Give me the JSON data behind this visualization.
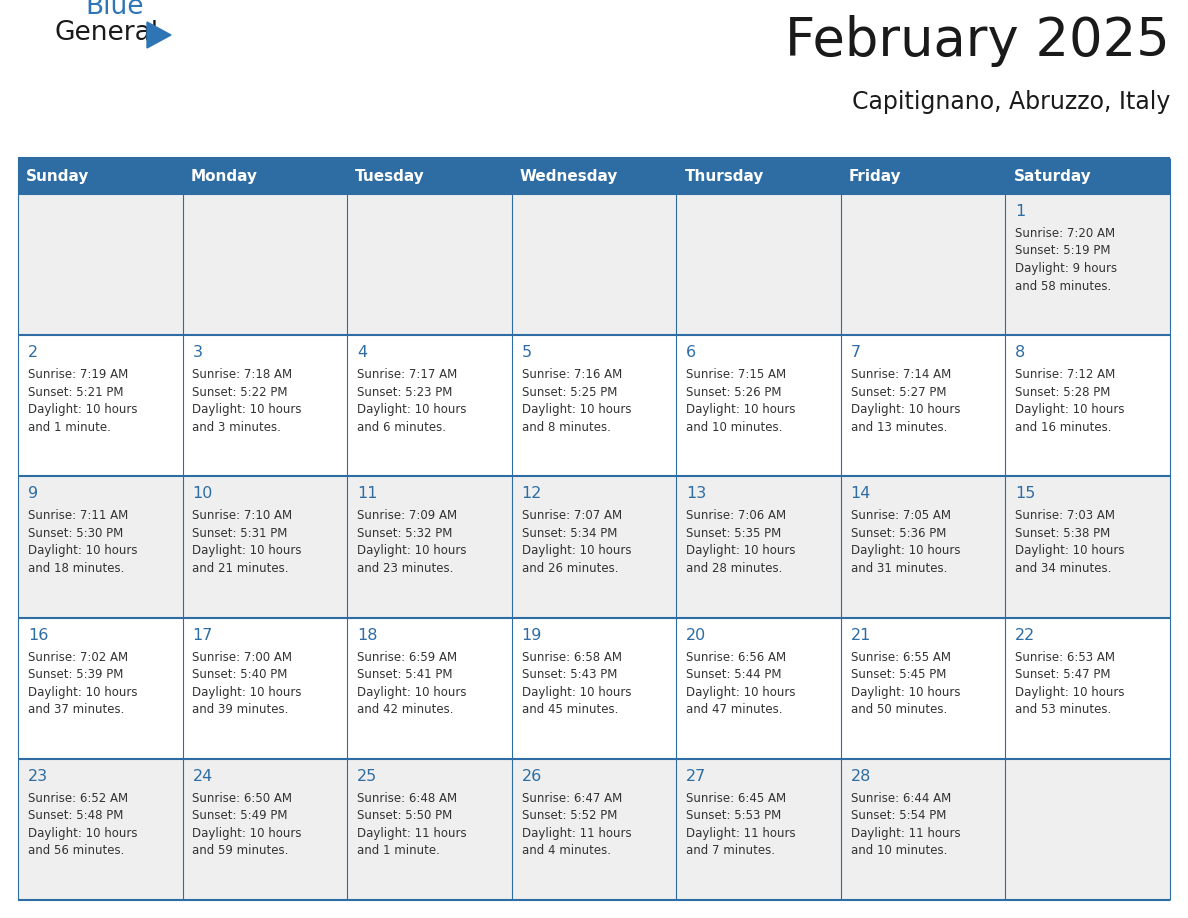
{
  "title": "February 2025",
  "subtitle": "Capitignano, Abruzzo, Italy",
  "header_bg": "#2E6DA4",
  "header_text_color": "#FFFFFF",
  "row_bg_odd": "#EFEFEF",
  "row_bg_even": "#FFFFFF",
  "border_color": "#2E6DA4",
  "day_headers": [
    "Sunday",
    "Monday",
    "Tuesday",
    "Wednesday",
    "Thursday",
    "Friday",
    "Saturday"
  ],
  "title_color": "#1a1a1a",
  "subtitle_color": "#1a1a1a",
  "day_number_color": "#2E6DA4",
  "cell_text_color": "#333333",
  "logo_general_color": "#1a1a1a",
  "logo_blue_color": "#2E75B6",
  "calendar_data": [
    [
      null,
      null,
      null,
      null,
      null,
      null,
      {
        "day": 1,
        "sunrise": "7:20 AM",
        "sunset": "5:19 PM",
        "daylight": "9 hours\nand 58 minutes."
      }
    ],
    [
      {
        "day": 2,
        "sunrise": "7:19 AM",
        "sunset": "5:21 PM",
        "daylight": "10 hours\nand 1 minute."
      },
      {
        "day": 3,
        "sunrise": "7:18 AM",
        "sunset": "5:22 PM",
        "daylight": "10 hours\nand 3 minutes."
      },
      {
        "day": 4,
        "sunrise": "7:17 AM",
        "sunset": "5:23 PM",
        "daylight": "10 hours\nand 6 minutes."
      },
      {
        "day": 5,
        "sunrise": "7:16 AM",
        "sunset": "5:25 PM",
        "daylight": "10 hours\nand 8 minutes."
      },
      {
        "day": 6,
        "sunrise": "7:15 AM",
        "sunset": "5:26 PM",
        "daylight": "10 hours\nand 10 minutes."
      },
      {
        "day": 7,
        "sunrise": "7:14 AM",
        "sunset": "5:27 PM",
        "daylight": "10 hours\nand 13 minutes."
      },
      {
        "day": 8,
        "sunrise": "7:12 AM",
        "sunset": "5:28 PM",
        "daylight": "10 hours\nand 16 minutes."
      }
    ],
    [
      {
        "day": 9,
        "sunrise": "7:11 AM",
        "sunset": "5:30 PM",
        "daylight": "10 hours\nand 18 minutes."
      },
      {
        "day": 10,
        "sunrise": "7:10 AM",
        "sunset": "5:31 PM",
        "daylight": "10 hours\nand 21 minutes."
      },
      {
        "day": 11,
        "sunrise": "7:09 AM",
        "sunset": "5:32 PM",
        "daylight": "10 hours\nand 23 minutes."
      },
      {
        "day": 12,
        "sunrise": "7:07 AM",
        "sunset": "5:34 PM",
        "daylight": "10 hours\nand 26 minutes."
      },
      {
        "day": 13,
        "sunrise": "7:06 AM",
        "sunset": "5:35 PM",
        "daylight": "10 hours\nand 28 minutes."
      },
      {
        "day": 14,
        "sunrise": "7:05 AM",
        "sunset": "5:36 PM",
        "daylight": "10 hours\nand 31 minutes."
      },
      {
        "day": 15,
        "sunrise": "7:03 AM",
        "sunset": "5:38 PM",
        "daylight": "10 hours\nand 34 minutes."
      }
    ],
    [
      {
        "day": 16,
        "sunrise": "7:02 AM",
        "sunset": "5:39 PM",
        "daylight": "10 hours\nand 37 minutes."
      },
      {
        "day": 17,
        "sunrise": "7:00 AM",
        "sunset": "5:40 PM",
        "daylight": "10 hours\nand 39 minutes."
      },
      {
        "day": 18,
        "sunrise": "6:59 AM",
        "sunset": "5:41 PM",
        "daylight": "10 hours\nand 42 minutes."
      },
      {
        "day": 19,
        "sunrise": "6:58 AM",
        "sunset": "5:43 PM",
        "daylight": "10 hours\nand 45 minutes."
      },
      {
        "day": 20,
        "sunrise": "6:56 AM",
        "sunset": "5:44 PM",
        "daylight": "10 hours\nand 47 minutes."
      },
      {
        "day": 21,
        "sunrise": "6:55 AM",
        "sunset": "5:45 PM",
        "daylight": "10 hours\nand 50 minutes."
      },
      {
        "day": 22,
        "sunrise": "6:53 AM",
        "sunset": "5:47 PM",
        "daylight": "10 hours\nand 53 minutes."
      }
    ],
    [
      {
        "day": 23,
        "sunrise": "6:52 AM",
        "sunset": "5:48 PM",
        "daylight": "10 hours\nand 56 minutes."
      },
      {
        "day": 24,
        "sunrise": "6:50 AM",
        "sunset": "5:49 PM",
        "daylight": "10 hours\nand 59 minutes."
      },
      {
        "day": 25,
        "sunrise": "6:48 AM",
        "sunset": "5:50 PM",
        "daylight": "11 hours\nand 1 minute."
      },
      {
        "day": 26,
        "sunrise": "6:47 AM",
        "sunset": "5:52 PM",
        "daylight": "11 hours\nand 4 minutes."
      },
      {
        "day": 27,
        "sunrise": "6:45 AM",
        "sunset": "5:53 PM",
        "daylight": "11 hours\nand 7 minutes."
      },
      {
        "day": 28,
        "sunrise": "6:44 AM",
        "sunset": "5:54 PM",
        "daylight": "11 hours\nand 10 minutes."
      },
      null
    ]
  ]
}
